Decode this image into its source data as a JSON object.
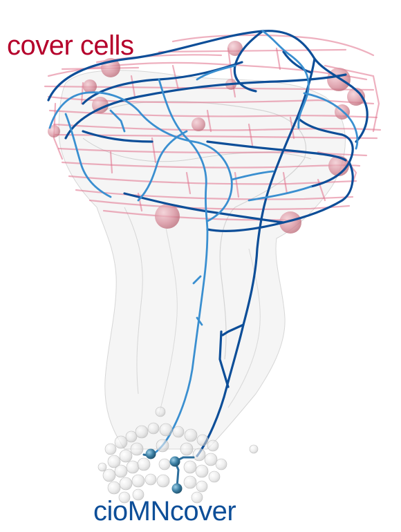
{
  "labels": {
    "cover_cells": "cover cells",
    "ciomn_cover": "cioMNcover"
  },
  "colors": {
    "cover_cells": "#b5002b",
    "ciomn_cover": "#0d4e98",
    "neurite_dark": "#0d4e98",
    "neurite_light": "#3a8fd0",
    "cover_cell_processes": "#e0708a",
    "body_outline": "#bdbdbd"
  }
}
